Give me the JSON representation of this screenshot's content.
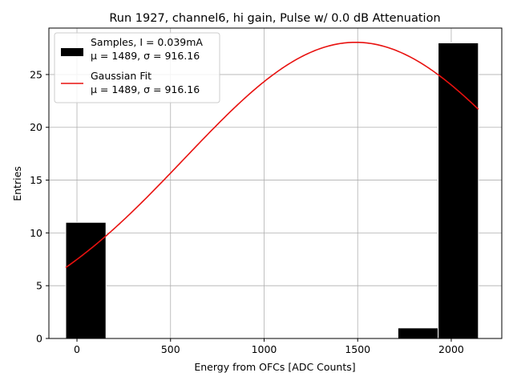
{
  "chart_data": {
    "type": "bar",
    "title": "Run 1927, channel6, hi gain, Pulse w/ 0.0 dB Attenuation",
    "xlabel": "Energy from OFCs [ADC Counts]",
    "ylabel": "Entries",
    "xlim": [
      -150,
      2270
    ],
    "ylim": [
      0,
      29.4
    ],
    "grid": true,
    "legend_position": "upper-left",
    "xticks": [
      0,
      500,
      1000,
      1500,
      2000
    ],
    "yticks": [
      0,
      5,
      10,
      15,
      20,
      25
    ],
    "bars": [
      {
        "x0": -60,
        "x1": 155,
        "count": 11
      },
      {
        "x0": 1715,
        "x1": 1930,
        "count": 1
      },
      {
        "x0": 1930,
        "x1": 2145,
        "count": 28
      }
    ],
    "fit": {
      "mu": 1489,
      "sigma": 916.16,
      "amplitude": 28.05,
      "x_start": -60,
      "x_end": 2145
    },
    "series": [
      {
        "name": "Samples, I = 0.039mA",
        "name_line2": "μ = 1489, σ = 916.16",
        "color": "#000000"
      },
      {
        "name": "Gaussian Fit",
        "name_line2": "μ = 1489, σ = 916.16",
        "color": "#e8110f"
      }
    ]
  }
}
